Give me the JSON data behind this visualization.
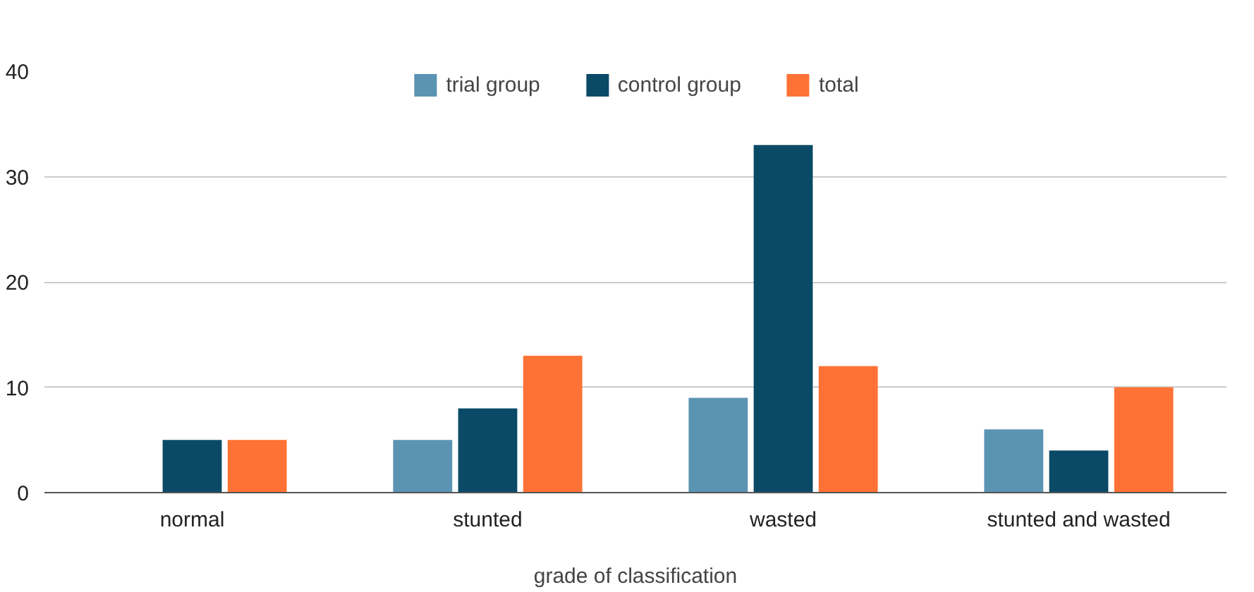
{
  "chart_data": {
    "type": "bar",
    "xlabel": "grade of classification",
    "categories": [
      "normal",
      "stunted",
      "wasted",
      "stunted and wasted"
    ],
    "series": [
      {
        "name": "trial group",
        "color": "#5b93b3",
        "values": [
          0,
          5,
          9,
          6
        ]
      },
      {
        "name": "control group",
        "color": "#0b4a67",
        "values": [
          5,
          8,
          33,
          4
        ]
      },
      {
        "name": "total",
        "color": "#ff7235",
        "values": [
          5,
          13,
          12,
          10
        ]
      }
    ],
    "ylim": [
      0,
      40
    ],
    "yticks": [
      0,
      10,
      20,
      30,
      40
    ],
    "grid": "y",
    "legend": "top"
  }
}
